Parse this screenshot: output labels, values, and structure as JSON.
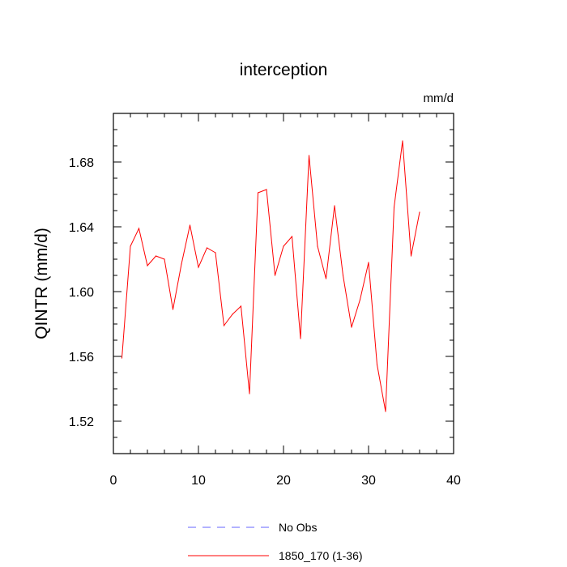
{
  "chart_data": {
    "type": "line",
    "title": "interception",
    "units_label": "mm/d",
    "xlabel": "",
    "ylabel": "QINTR  (mm/d)",
    "xlim": [
      0,
      40
    ],
    "ylim": [
      1.5,
      1.71
    ],
    "x_ticks": [
      0,
      10,
      20,
      30,
      40
    ],
    "x_tick_labels": [
      "0",
      "10",
      "20",
      "30",
      "40"
    ],
    "y_ticks": [
      1.52,
      1.56,
      1.6,
      1.64,
      1.68
    ],
    "y_tick_labels": [
      "1.52",
      "1.56",
      "1.60",
      "1.64",
      "1.68"
    ],
    "grid": false,
    "legend_position": "bottom",
    "series": [
      {
        "name": "No Obs",
        "color": "#6666ff",
        "dashed": true,
        "x": [],
        "y": []
      },
      {
        "name": "1850_170 (1-36)",
        "color": "#ff0000",
        "dashed": false,
        "x": [
          1,
          2,
          3,
          4,
          5,
          6,
          7,
          8,
          9,
          10,
          11,
          12,
          13,
          14,
          15,
          16,
          17,
          18,
          19,
          20,
          21,
          22,
          23,
          24,
          25,
          26,
          27,
          28,
          29,
          30,
          31,
          32,
          33,
          34,
          35,
          36
        ],
        "y": [
          1.559,
          1.628,
          1.639,
          1.616,
          1.622,
          1.62,
          1.589,
          1.617,
          1.641,
          1.615,
          1.627,
          1.624,
          1.579,
          1.586,
          1.591,
          1.537,
          1.661,
          1.663,
          1.61,
          1.628,
          1.634,
          1.571,
          1.684,
          1.628,
          1.608,
          1.653,
          1.61,
          1.578,
          1.595,
          1.618,
          1.555,
          1.526,
          1.652,
          1.693,
          1.622,
          1.649
        ]
      }
    ]
  }
}
